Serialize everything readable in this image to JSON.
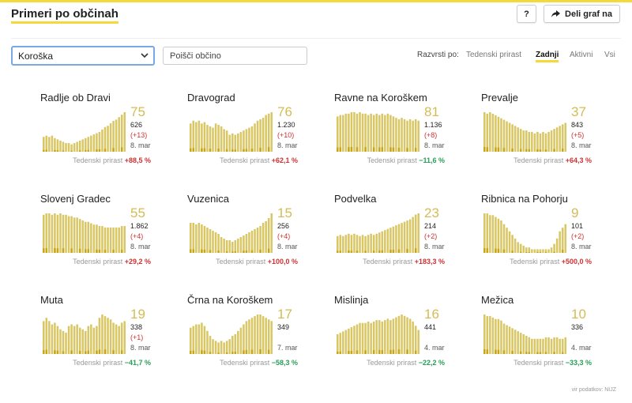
{
  "header": {
    "title": "Primeri po občinah",
    "help_label": "?",
    "share_label": "Deli graf na"
  },
  "filters": {
    "region_selected": "Koroška",
    "search_placeholder": "Poišči občino",
    "sort_label": "Razvrsti po:",
    "sort_options": [
      "Tedenski prirast",
      "Zadnji",
      "Aktivni",
      "Vsi"
    ],
    "sort_active": "Zadnji"
  },
  "growth_label": "Tedenski prirast",
  "colors": {
    "bar": "#d9c766",
    "bar_dark": "#c8a616",
    "up": "#cc3333",
    "down": "#2a9d5a",
    "accent": "#f5d83a"
  },
  "municipalities": [
    {
      "name": "Radlje ob Dravi",
      "active": "75",
      "total": "626",
      "delta": "(+13)",
      "date": "8. mar",
      "growth": "+88,5 %",
      "trend": "up",
      "series": [
        12,
        13,
        12,
        13,
        11,
        10,
        9,
        8,
        7,
        7,
        6,
        7,
        8,
        9,
        10,
        11,
        12,
        13,
        14,
        15,
        16,
        18,
        20,
        21,
        23,
        25,
        26,
        28,
        30,
        32
      ]
    },
    {
      "name": "Dravograd",
      "active": "76",
      "total": "1.230",
      "delta": "(+10)",
      "date": "8. mar",
      "growth": "+62,1 %",
      "trend": "up",
      "series": [
        20,
        22,
        21,
        22,
        20,
        21,
        19,
        18,
        17,
        20,
        19,
        18,
        16,
        15,
        12,
        13,
        12,
        13,
        14,
        15,
        16,
        17,
        18,
        20,
        22,
        23,
        24,
        26,
        27,
        28
      ]
    },
    {
      "name": "Ravne na Koroškem",
      "active": "81",
      "total": "1.136",
      "delta": "(+8)",
      "date": "8. mar",
      "growth": "−11,6 %",
      "trend": "down",
      "series": [
        25,
        26,
        26,
        27,
        27,
        28,
        28,
        27,
        28,
        27,
        27,
        26,
        27,
        26,
        27,
        26,
        27,
        26,
        27,
        26,
        25,
        24,
        23,
        24,
        23,
        22,
        23,
        22,
        23,
        22
      ]
    },
    {
      "name": "Prevalje",
      "active": "37",
      "total": "843",
      "delta": "(+5)",
      "date": "8. mar",
      "growth": "+64,3 %",
      "trend": "up",
      "series": [
        26,
        25,
        26,
        25,
        24,
        23,
        22,
        21,
        20,
        19,
        18,
        17,
        16,
        15,
        14,
        14,
        13,
        13,
        12,
        13,
        12,
        13,
        12,
        13,
        14,
        15,
        16,
        17,
        18,
        19
      ]
    },
    {
      "name": "Slovenj Gradec",
      "active": "55",
      "total": "1.862",
      "delta": "(+4)",
      "date": "8. mar",
      "growth": "+29,2 %",
      "trend": "up",
      "series": [
        27,
        28,
        28,
        27,
        28,
        27,
        28,
        27,
        27,
        26,
        26,
        25,
        25,
        24,
        23,
        22,
        22,
        21,
        20,
        20,
        19,
        19,
        18,
        18,
        18,
        18,
        18,
        18,
        19,
        19
      ]
    },
    {
      "name": "Vuzenica",
      "active": "15",
      "total": "256",
      "delta": "(+4)",
      "date": "8. mar",
      "growth": "+100,0 %",
      "trend": "up",
      "series": [
        19,
        19,
        18,
        19,
        18,
        17,
        16,
        15,
        14,
        13,
        12,
        10,
        9,
        8,
        8,
        7,
        8,
        9,
        10,
        11,
        12,
        13,
        14,
        15,
        16,
        17,
        19,
        20,
        22,
        25
      ]
    },
    {
      "name": "Podvelka",
      "active": "23",
      "total": "214",
      "delta": "(+2)",
      "date": "8. mar",
      "growth": "+183,3 %",
      "trend": "up",
      "series": [
        14,
        15,
        14,
        15,
        16,
        15,
        16,
        15,
        14,
        15,
        14,
        15,
        16,
        15,
        16,
        17,
        18,
        19,
        20,
        21,
        22,
        23,
        24,
        25,
        26,
        27,
        28,
        30,
        32,
        33
      ]
    },
    {
      "name": "Ribnica na Pohorju",
      "active": "9",
      "total": "101",
      "delta": "(+2)",
      "date": "8. mar",
      "growth": "+500,0 %",
      "trend": "up",
      "series": [
        22,
        22,
        21,
        21,
        20,
        19,
        18,
        16,
        14,
        12,
        10,
        8,
        6,
        5,
        4,
        3,
        3,
        2,
        2,
        2,
        2,
        2,
        2,
        2,
        3,
        5,
        8,
        12,
        14,
        16
      ]
    },
    {
      "name": "Muta",
      "active": "19",
      "total": "338",
      "delta": "(+1)",
      "date": "8. mar",
      "growth": "−41,7 %",
      "trend": "down",
      "series": [
        20,
        22,
        20,
        18,
        19,
        17,
        15,
        14,
        13,
        17,
        18,
        17,
        18,
        16,
        15,
        14,
        17,
        18,
        16,
        17,
        22,
        24,
        23,
        22,
        21,
        19,
        18,
        17,
        19,
        20
      ]
    },
    {
      "name": "Črna na Koroškem",
      "active": "17",
      "total": "349",
      "delta": "",
      "date": "7. mar",
      "growth": "−58,3 %",
      "trend": "down",
      "series": [
        16,
        17,
        18,
        18,
        19,
        17,
        14,
        11,
        9,
        8,
        7,
        8,
        7,
        8,
        9,
        11,
        12,
        14,
        16,
        18,
        20,
        21,
        22,
        23,
        24,
        24,
        23,
        22,
        21,
        20
      ]
    },
    {
      "name": "Mislinja",
      "active": "16",
      "total": "441",
      "delta": "",
      "date": "4. mar",
      "growth": "−22,2 %",
      "trend": "down",
      "series": [
        14,
        15,
        16,
        17,
        18,
        19,
        20,
        21,
        22,
        22,
        22,
        23,
        22,
        23,
        24,
        24,
        23,
        24,
        25,
        24,
        25,
        26,
        27,
        28,
        27,
        26,
        25,
        23,
        20,
        17
      ]
    },
    {
      "name": "Mežica",
      "active": "10",
      "total": "336",
      "delta": "",
      "date": "4. mar",
      "growth": "−33,3 %",
      "trend": "down",
      "series": [
        26,
        25,
        25,
        24,
        23,
        23,
        22,
        20,
        19,
        18,
        17,
        16,
        15,
        14,
        13,
        12,
        11,
        10,
        10,
        10,
        10,
        10,
        11,
        11,
        10,
        11,
        11,
        10,
        10,
        11
      ]
    }
  ],
  "source": "vir podatkov: NIJZ"
}
